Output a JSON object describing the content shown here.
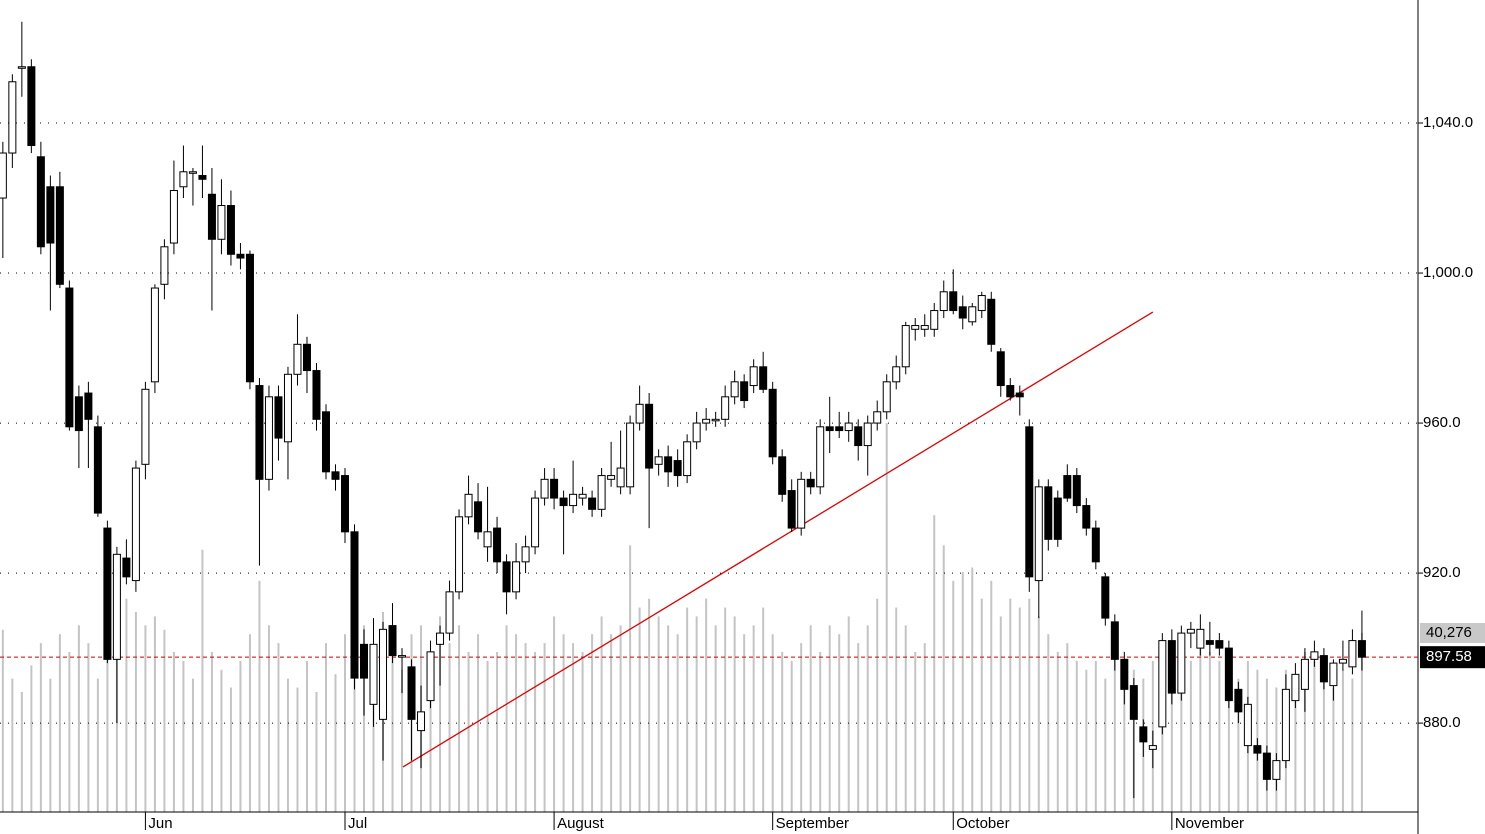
{
  "chart_data": {
    "type": "candlestick",
    "candles": [
      [
        1020,
        1035,
        1004,
        1032
      ],
      [
        1032,
        1053,
        1028,
        1051
      ],
      [
        1055,
        1067,
        1047,
        1055
      ],
      [
        1055,
        1057,
        1032,
        1034
      ],
      [
        1031,
        1035,
        1005,
        1007
      ],
      [
        1023,
        1026,
        990,
        1008
      ],
      [
        1023,
        1027,
        996,
        997
      ],
      [
        996,
        998,
        958,
        959
      ],
      [
        967,
        970,
        948,
        958
      ],
      [
        968,
        971,
        948,
        961
      ],
      [
        959,
        962,
        935,
        936
      ],
      [
        932,
        934,
        896,
        897
      ],
      [
        897,
        927,
        880,
        925
      ],
      [
        924,
        929,
        917,
        919
      ],
      [
        918,
        950,
        915,
        948
      ],
      [
        949,
        971,
        945,
        969
      ],
      [
        971,
        997,
        968,
        996
      ],
      [
        997,
        1009,
        993,
        1007
      ],
      [
        1008,
        1030,
        1005,
        1022
      ],
      [
        1023,
        1034,
        1020,
        1027
      ],
      [
        1027,
        1028,
        1018,
        1027
      ],
      [
        1026,
        1034,
        1020,
        1025
      ],
      [
        1021,
        1028,
        990,
        1009
      ],
      [
        1009,
        1025,
        1005,
        1018
      ],
      [
        1018,
        1022,
        1002,
        1005
      ],
      [
        1005,
        1008,
        1001,
        1004
      ],
      [
        1005,
        1006,
        969,
        971
      ],
      [
        970,
        972,
        922,
        945
      ],
      [
        945,
        970,
        942,
        967
      ],
      [
        967,
        970,
        950,
        956
      ],
      [
        955,
        975,
        945,
        973
      ],
      [
        973,
        989,
        970,
        981
      ],
      [
        981,
        983,
        968,
        974
      ],
      [
        974,
        976,
        958,
        961
      ],
      [
        963,
        965,
        945,
        947
      ],
      [
        947,
        949,
        942,
        945
      ],
      [
        946,
        948,
        928,
        931
      ],
      [
        931,
        933,
        889,
        892
      ],
      [
        901,
        905,
        882,
        892
      ],
      [
        885,
        908,
        879,
        901
      ],
      [
        881,
        907,
        870,
        905
      ],
      [
        906,
        912,
        896,
        898
      ],
      [
        898,
        900,
        888,
        898
      ],
      [
        895,
        897,
        870,
        881
      ],
      [
        878,
        890,
        868,
        883
      ],
      [
        886,
        902,
        884,
        899
      ],
      [
        901,
        906,
        890,
        904
      ],
      [
        904,
        918,
        902,
        915
      ],
      [
        915,
        937,
        913,
        935
      ],
      [
        935,
        946,
        933,
        941
      ],
      [
        939,
        944,
        929,
        931
      ],
      [
        927,
        943,
        923,
        931
      ],
      [
        932,
        935,
        920,
        923
      ],
      [
        923,
        925,
        909,
        915
      ],
      [
        915,
        928,
        913,
        923
      ],
      [
        923,
        930,
        920,
        927
      ],
      [
        927,
        942,
        925,
        940
      ],
      [
        940,
        948,
        938,
        945
      ],
      [
        945,
        948,
        937,
        940
      ],
      [
        940,
        942,
        925,
        938
      ],
      [
        938,
        950,
        936,
        941
      ],
      [
        940,
        943,
        938,
        941
      ],
      [
        940,
        942,
        935,
        937
      ],
      [
        937,
        948,
        935,
        946
      ],
      [
        945,
        955,
        943,
        946
      ],
      [
        943,
        958,
        941,
        948
      ],
      [
        943,
        962,
        941,
        960
      ],
      [
        960,
        970,
        958,
        965
      ],
      [
        965,
        968,
        932,
        948
      ],
      [
        949,
        953,
        946,
        951
      ],
      [
        951,
        954,
        943,
        947
      ],
      [
        950,
        953,
        943,
        946
      ],
      [
        946,
        957,
        944,
        955
      ],
      [
        955,
        963,
        953,
        960
      ],
      [
        960,
        964,
        958,
        961
      ],
      [
        961,
        963,
        959,
        961
      ],
      [
        961,
        970,
        959,
        967
      ],
      [
        967,
        974,
        965,
        971
      ],
      [
        971,
        973,
        964,
        966
      ],
      [
        970,
        977,
        968,
        975
      ],
      [
        975,
        979,
        968,
        969
      ],
      [
        969,
        971,
        949,
        951
      ],
      [
        951,
        953,
        939,
        941
      ],
      [
        942,
        945,
        931,
        932
      ],
      [
        932,
        947,
        930,
        945
      ],
      [
        945,
        947,
        941,
        943
      ],
      [
        943,
        961,
        941,
        959
      ],
      [
        959,
        967,
        952,
        958
      ],
      [
        959,
        963,
        956,
        958
      ],
      [
        958,
        963,
        955,
        960
      ],
      [
        959,
        961,
        950,
        954
      ],
      [
        954,
        962,
        946,
        960
      ],
      [
        960,
        966,
        958,
        963
      ],
      [
        963,
        973,
        961,
        971
      ],
      [
        971,
        978,
        969,
        975
      ],
      [
        975,
        987,
        973,
        986
      ],
      [
        985,
        988,
        982,
        986
      ],
      [
        985,
        989,
        983,
        986
      ],
      [
        985,
        992,
        983,
        990
      ],
      [
        990,
        998,
        988,
        995
      ],
      [
        995,
        1001,
        989,
        990
      ],
      [
        991,
        994,
        985,
        988
      ],
      [
        987,
        992,
        986,
        991
      ],
      [
        990,
        995,
        988,
        994
      ],
      [
        993,
        995,
        979,
        981
      ],
      [
        979,
        980,
        967,
        970
      ],
      [
        970,
        972,
        966,
        967
      ],
      [
        968,
        970,
        962,
        967
      ],
      [
        959,
        961,
        915,
        919
      ],
      [
        918,
        945,
        908,
        943
      ],
      [
        943,
        945,
        926,
        929
      ],
      [
        940,
        942,
        927,
        929
      ],
      [
        946,
        949,
        939,
        940
      ],
      [
        946,
        948,
        936,
        938
      ],
      [
        938,
        940,
        930,
        932
      ],
      [
        932,
        934,
        921,
        923
      ],
      [
        919,
        920,
        906,
        908
      ],
      [
        907,
        909,
        894,
        897
      ],
      [
        897,
        899,
        885,
        889
      ],
      [
        890,
        892,
        860,
        881
      ],
      [
        879,
        881,
        871,
        875
      ],
      [
        873,
        878,
        868,
        874
      ],
      [
        879,
        904,
        877,
        902
      ],
      [
        902,
        905,
        885,
        888
      ],
      [
        888,
        906,
        886,
        904
      ],
      [
        904,
        907,
        900,
        905
      ],
      [
        900,
        909,
        898,
        905
      ],
      [
        902,
        907,
        898,
        901
      ],
      [
        902,
        904,
        898,
        900
      ],
      [
        900,
        902,
        884,
        886
      ],
      [
        889,
        891,
        880,
        883
      ],
      [
        874,
        887,
        872,
        885
      ],
      [
        874,
        876,
        870,
        872
      ],
      [
        872,
        874,
        862,
        865
      ],
      [
        865,
        872,
        862,
        870
      ],
      [
        870,
        893,
        868,
        889
      ],
      [
        886,
        896,
        884,
        893
      ],
      [
        889,
        900,
        883,
        897
      ],
      [
        897,
        902,
        895,
        899
      ],
      [
        898,
        900,
        889,
        891
      ],
      [
        890,
        897,
        886,
        896
      ],
      [
        896,
        902,
        894,
        897
      ],
      [
        895,
        905,
        893,
        902
      ],
      [
        902,
        910,
        894,
        897.58
      ]
    ],
    "volumes": [
      41000,
      30000,
      27000,
      33000,
      38000,
      30000,
      40000,
      36000,
      42000,
      38000,
      30000,
      44000,
      36000,
      48000,
      45000,
      42000,
      44000,
      41000,
      36000,
      34000,
      30000,
      59000,
      36000,
      32000,
      28000,
      34000,
      40000,
      52000,
      42000,
      38000,
      30000,
      28000,
      34000,
      27000,
      38000,
      31000,
      40000,
      46000,
      42000,
      35000,
      45000,
      38000,
      32000,
      40000,
      42000,
      34000,
      44000,
      38000,
      42000,
      36000,
      40000,
      34000,
      36000,
      42000,
      40000,
      38000,
      36000,
      38000,
      44000,
      40000,
      38000,
      36000,
      40000,
      44000,
      40000,
      42000,
      60000,
      46000,
      48000,
      44000,
      42000,
      40000,
      46000,
      44000,
      48000,
      42000,
      46000,
      44000,
      40000,
      42000,
      46000,
      40000,
      36000,
      34000,
      38000,
      42000,
      36000,
      42000,
      40000,
      44000,
      38000,
      42000,
      48000,
      87500,
      46000,
      42000,
      36000,
      38000,
      66800,
      60000,
      52000,
      54000,
      55000,
      48000,
      52000,
      44000,
      48000,
      46000,
      48000,
      44000,
      40000,
      36000,
      38000,
      34000,
      32000,
      34000,
      30000,
      36000,
      34000,
      32000,
      30000,
      34000,
      32000,
      36000,
      38000,
      34000,
      40000,
      36000,
      34000,
      32000,
      30000,
      34000,
      32000,
      30000,
      28000,
      32000,
      30000,
      36000,
      34000,
      32000,
      28000,
      32000,
      30000,
      40276
    ],
    "volume_last_label": "40,276",
    "xlim": [
      -0.3,
      148.9
    ],
    "ylim": [
      856.3,
      1072.8
    ],
    "vlim": [
      0,
      182700
    ],
    "yticks": [
      {
        "value": 880,
        "label": "880.0"
      },
      {
        "value": 920,
        "label": "920.0"
      },
      {
        "value": 960,
        "label": "960.0"
      },
      {
        "value": 1000,
        "label": "1,000.0"
      },
      {
        "value": 1040,
        "label": "1,040.0"
      }
    ],
    "months": [
      {
        "label": "Jun",
        "index": 15
      },
      {
        "label": "Jul",
        "index": 36
      },
      {
        "label": "August",
        "index": 58
      },
      {
        "label": "September",
        "index": 81
      },
      {
        "label": "October",
        "index": 100
      },
      {
        "label": "November",
        "index": 123
      }
    ],
    "trendline": {
      "start": [
        42.1,
        868.3
      ],
      "end": [
        121,
        989.6
      ],
      "color": "#e00000"
    },
    "last_price_line_color": "#d00000",
    "volume_color": "#c4c4c4",
    "grid": true
  }
}
